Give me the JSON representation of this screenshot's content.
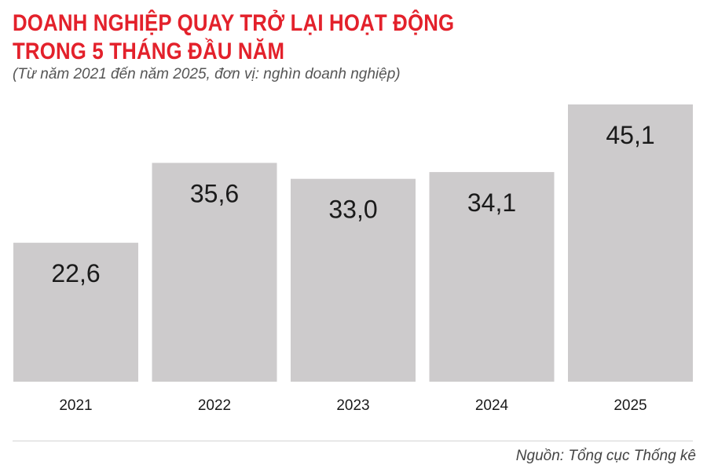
{
  "header": {
    "title_line1": "DOANH NGHIỆP QUAY TRỞ LẠI HOẠT ĐỘNG",
    "title_line2": "TRONG 5 THÁNG ĐẦU NĂM",
    "subtitle": "(Từ năm 2021 đến năm 2025, đơn vị: nghìn doanh nghiệp)"
  },
  "footer": {
    "source": "Nguồn: Tổng cục Thống kê"
  },
  "colors": {
    "title": "#e3212b",
    "bar": "#cdcbcc",
    "text": "#1a1a1a"
  },
  "chart_data": {
    "type": "bar",
    "categories": [
      "2021",
      "2022",
      "2023",
      "2024",
      "2025"
    ],
    "values": [
      22.6,
      35.6,
      33.0,
      34.1,
      45.1
    ],
    "value_labels": [
      "22,6",
      "35,6",
      "33,0",
      "34,1",
      "45,1"
    ],
    "title": "DOANH NGHIỆP QUAY TRỞ LẠI HOẠT ĐỘNG TRONG 5 THÁNG ĐẦU NĂM",
    "subtitle": "(Từ năm 2021 đến năm 2025, đơn vị: nghìn doanh nghiệp)",
    "xlabel": "",
    "ylabel": "",
    "ylim": [
      0,
      45.1
    ],
    "grid": false,
    "legend": "none"
  }
}
